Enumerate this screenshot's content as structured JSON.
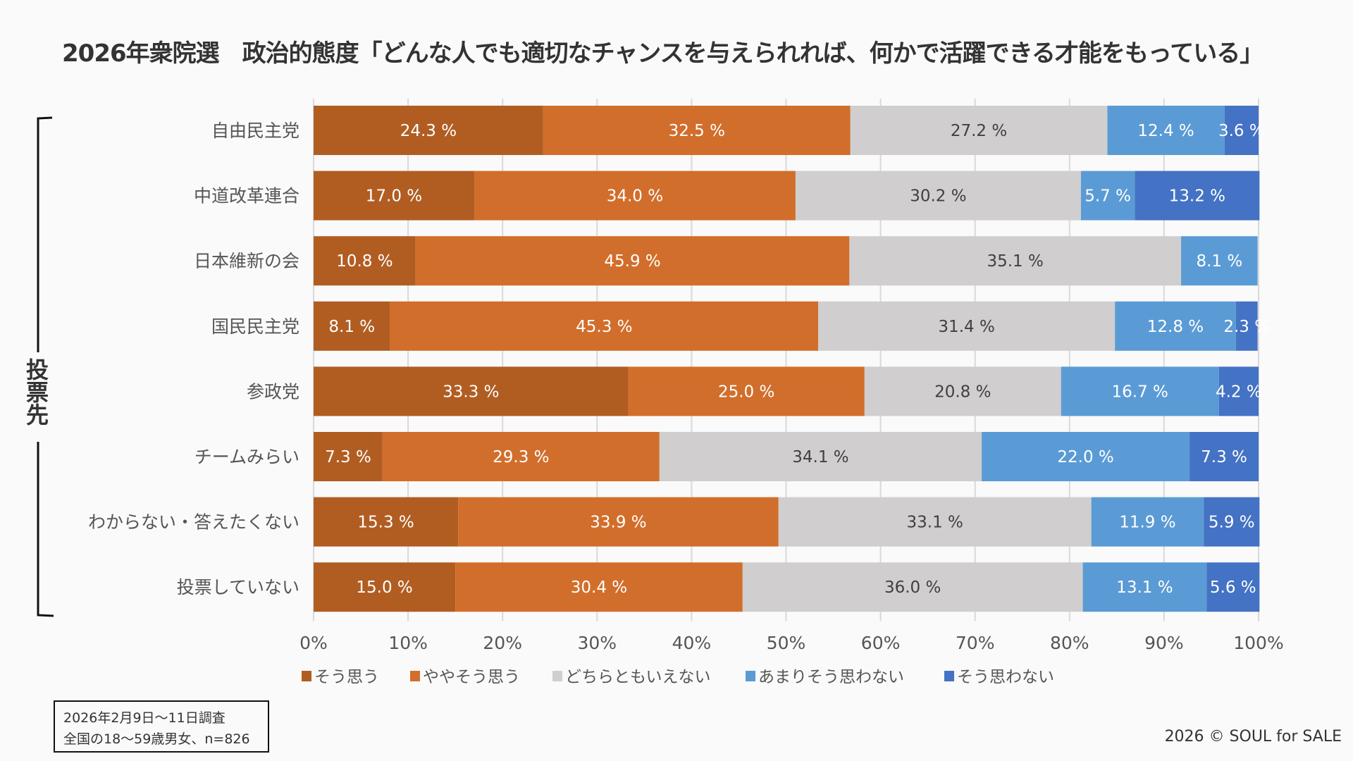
{
  "chart_data": {
    "type": "bar",
    "orientation": "horizontal",
    "stacked": "percent",
    "title": "2026年衆院選　政治的態度「どんな人でも適切なチャンスを与えられれば、何かで活躍できる才能をもっている」",
    "xlabel": "",
    "ylabel": "投票先",
    "xlim": [
      0,
      100
    ],
    "xticks": [
      "0%",
      "10%",
      "20%",
      "30%",
      "40%",
      "50%",
      "60%",
      "70%",
      "80%",
      "90%",
      "100%"
    ],
    "grid": "vertical",
    "legend_position": "bottom",
    "categories": [
      "自由民主党",
      "中道改革連合",
      "日本維新の会",
      "国民民主党",
      "参政党",
      "チームみらい",
      "わからない・答えたくない",
      "投票していない"
    ],
    "series": [
      {
        "name": "そう思う",
        "color": "#b15d22",
        "label_color": "#ffffff",
        "values": [
          24.3,
          17.0,
          10.8,
          8.1,
          33.3,
          7.3,
          15.3,
          15.0
        ]
      },
      {
        "name": "ややそう思う",
        "color": "#d26e2b",
        "label_color": "#ffffff",
        "values": [
          32.5,
          34.0,
          45.9,
          45.3,
          25.0,
          29.3,
          33.9,
          30.4
        ]
      },
      {
        "name": "どちらともいえない",
        "color": "#d0cece",
        "label_color": "#404040",
        "values": [
          27.2,
          30.2,
          35.1,
          31.4,
          20.8,
          34.1,
          33.1,
          36.0
        ]
      },
      {
        "name": "あまりそう思わない",
        "color": "#5b9bd5",
        "label_color": "#ffffff",
        "values": [
          12.4,
          5.7,
          8.1,
          12.8,
          16.7,
          22.0,
          11.9,
          13.1
        ]
      },
      {
        "name": "そう思わない",
        "color": "#4472c4",
        "label_color": "#ffffff",
        "values": [
          3.6,
          13.2,
          0.0,
          2.3,
          4.2,
          7.3,
          5.9,
          5.6
        ]
      }
    ],
    "data_label_suffix": " %"
  },
  "header": {
    "title": "2026年衆院選　政治的態度「どんな人でも適切なチャンスを与えられれば、何かで活躍できる才能をもっている」"
  },
  "group_label": "投票先",
  "note": {
    "line1": "2026年2月9日～11日調査",
    "line2": "全国の18～59歳男女、n=826"
  },
  "credit": "2026 © SOUL for SALE"
}
